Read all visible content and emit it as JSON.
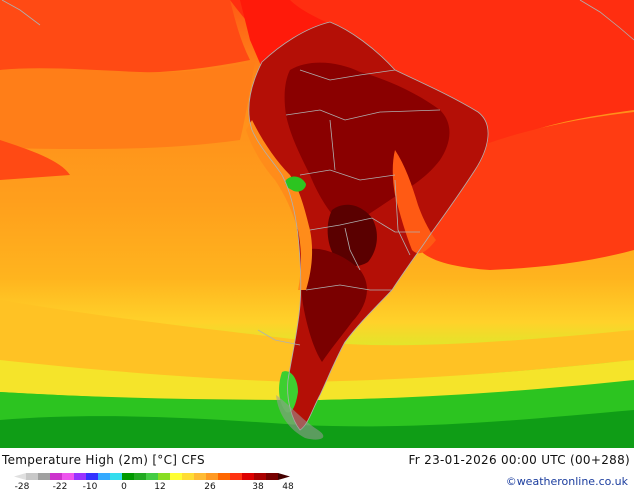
{
  "map": {
    "title": "Temperature High (2m) [°C] CFS",
    "datetime": "Fr 23-01-2026 00:00 UTC (00+288)",
    "credit": "©weatheronline.co.uk",
    "region": "South America"
  },
  "legend": {
    "ticks": [
      "-28",
      "-22",
      "-10",
      "0",
      "12",
      "26",
      "38",
      "48"
    ],
    "colors": [
      "#e0e0e0",
      "#c8c8c8",
      "#a0a0a0",
      "#cc33cc",
      "#ee55ee",
      "#9933ff",
      "#3333ff",
      "#33aaff",
      "#33ddee",
      "#009900",
      "#22aa22",
      "#44cc44",
      "#88dd22",
      "#ffff33",
      "#ffdd33",
      "#ffbb33",
      "#ff9922",
      "#ff6600",
      "#ff3311",
      "#dd0000",
      "#aa0000",
      "#770000",
      "#440000"
    ]
  },
  "colors": {
    "ocean_warm": "#ff9a1a",
    "ocean_hot": "#ff3a10",
    "land_hot": "#a80000",
    "land_hottest": "#5e0000",
    "cool_green": "#2fc21f",
    "border": "#b0b0b0"
  }
}
